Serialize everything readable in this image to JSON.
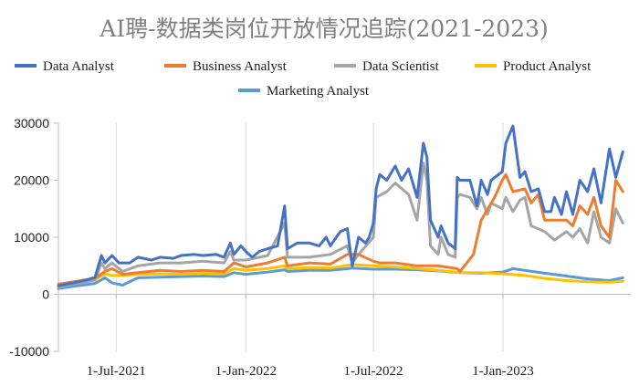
{
  "chart_data": {
    "type": "line",
    "title": "AI聘-数据类岗位开放情况追踪(2021-2023)",
    "xlabel": "",
    "ylabel": "",
    "x_range": [
      "2021-04-10",
      "2023-06-30"
    ],
    "ylim": [
      -10000,
      30000
    ],
    "y_ticks": [
      30000,
      20000,
      10000,
      0,
      -10000
    ],
    "y_tick_labels": [
      "30000",
      "20000",
      "10000",
      "0",
      "-10000"
    ],
    "x_ticks": [
      "2021-07-01",
      "2022-01-01",
      "2022-07-01",
      "2023-01-01"
    ],
    "x_tick_labels": [
      "1-Jul-2021",
      "1-Jan-2022",
      "1-Jul-2022",
      "1-Jan-2023"
    ],
    "grid": "vertical",
    "legend_position": "top",
    "series": [
      {
        "name": "Data Analyst",
        "color": "#4472C4",
        "points": [
          [
            "2021-04-10",
            1500
          ],
          [
            "2021-05-01",
            2000
          ],
          [
            "2021-05-20",
            2500
          ],
          [
            "2021-06-01",
            3000
          ],
          [
            "2021-06-10",
            6800
          ],
          [
            "2021-06-15",
            5500
          ],
          [
            "2021-06-25",
            6800
          ],
          [
            "2021-07-05",
            5500
          ],
          [
            "2021-07-20",
            5500
          ],
          [
            "2021-08-01",
            6500
          ],
          [
            "2021-08-20",
            6000
          ],
          [
            "2021-09-01",
            6500
          ],
          [
            "2021-09-20",
            6300
          ],
          [
            "2021-10-01",
            6800
          ],
          [
            "2021-10-20",
            7000
          ],
          [
            "2021-11-01",
            6800
          ],
          [
            "2021-11-20",
            7000
          ],
          [
            "2021-12-01",
            6500
          ],
          [
            "2021-12-10",
            9000
          ],
          [
            "2021-12-15",
            7000
          ],
          [
            "2021-12-25",
            8500
          ],
          [
            "2022-01-01",
            7500
          ],
          [
            "2022-01-10",
            6500
          ],
          [
            "2022-01-20",
            7500
          ],
          [
            "2022-02-01",
            8000
          ],
          [
            "2022-02-15",
            8500
          ],
          [
            "2022-02-25",
            15500
          ],
          [
            "2022-03-01",
            8000
          ],
          [
            "2022-03-15",
            9000
          ],
          [
            "2022-04-01",
            9000
          ],
          [
            "2022-04-15",
            8500
          ],
          [
            "2022-04-25",
            10000
          ],
          [
            "2022-05-01",
            8500
          ],
          [
            "2022-05-15",
            11000
          ],
          [
            "2022-05-25",
            11500
          ],
          [
            "2022-06-01",
            5000
          ],
          [
            "2022-06-10",
            10000
          ],
          [
            "2022-06-20",
            9000
          ],
          [
            "2022-06-25",
            10000
          ],
          [
            "2022-07-01",
            12500
          ],
          [
            "2022-07-05",
            18500
          ],
          [
            "2022-07-10",
            21000
          ],
          [
            "2022-07-20",
            20000
          ],
          [
            "2022-08-01",
            22500
          ],
          [
            "2022-08-10",
            20000
          ],
          [
            "2022-08-20",
            22000
          ],
          [
            "2022-09-01",
            17000
          ],
          [
            "2022-09-10",
            26500
          ],
          [
            "2022-09-15",
            24000
          ],
          [
            "2022-09-20",
            13000
          ],
          [
            "2022-10-01",
            10000
          ],
          [
            "2022-10-05",
            12000
          ],
          [
            "2022-10-15",
            9000
          ],
          [
            "2022-10-25",
            8000
          ],
          [
            "2022-10-28",
            20500
          ],
          [
            "2022-11-01",
            20000
          ],
          [
            "2022-11-15",
            20000
          ],
          [
            "2022-11-25",
            15500
          ],
          [
            "2022-12-01",
            20000
          ],
          [
            "2022-12-10",
            17500
          ],
          [
            "2022-12-15",
            20000
          ],
          [
            "2022-12-31",
            21500
          ],
          [
            "2023-01-05",
            26500
          ],
          [
            "2023-01-15",
            29500
          ],
          [
            "2023-01-25",
            20500
          ],
          [
            "2023-02-01",
            21500
          ],
          [
            "2023-02-10",
            18000
          ],
          [
            "2023-02-20",
            18500
          ],
          [
            "2023-03-01",
            14500
          ],
          [
            "2023-03-10",
            14500
          ],
          [
            "2023-03-15",
            17000
          ],
          [
            "2023-03-25",
            14000
          ],
          [
            "2023-04-01",
            18000
          ],
          [
            "2023-04-10",
            14000
          ],
          [
            "2023-04-20",
            20000
          ],
          [
            "2023-05-01",
            18000
          ],
          [
            "2023-05-10",
            22000
          ],
          [
            "2023-05-20",
            16000
          ],
          [
            "2023-06-01",
            25500
          ],
          [
            "2023-06-10",
            20500
          ],
          [
            "2023-06-20",
            25000
          ]
        ]
      },
      {
        "name": "Business Analyst",
        "color": "#ED7D31",
        "points": [
          [
            "2021-04-10",
            1800
          ],
          [
            "2021-05-01",
            2200
          ],
          [
            "2021-05-20",
            2600
          ],
          [
            "2021-06-01",
            2800
          ],
          [
            "2021-06-15",
            4000
          ],
          [
            "2021-06-25",
            4500
          ],
          [
            "2021-07-10",
            3500
          ],
          [
            "2021-08-01",
            3800
          ],
          [
            "2021-09-01",
            4200
          ],
          [
            "2021-10-01",
            4000
          ],
          [
            "2021-11-01",
            4200
          ],
          [
            "2021-12-01",
            4000
          ],
          [
            "2021-12-15",
            5500
          ],
          [
            "2022-01-01",
            4800
          ],
          [
            "2022-02-01",
            5500
          ],
          [
            "2022-02-25",
            6500
          ],
          [
            "2022-03-01",
            5000
          ],
          [
            "2022-04-01",
            5500
          ],
          [
            "2022-05-01",
            5300
          ],
          [
            "2022-05-25",
            7000
          ],
          [
            "2022-06-10",
            7000
          ],
          [
            "2022-07-01",
            5800
          ],
          [
            "2022-07-10",
            5500
          ],
          [
            "2022-08-01",
            5500
          ],
          [
            "2022-09-01",
            5000
          ],
          [
            "2022-10-01",
            5000
          ],
          [
            "2022-10-28",
            4500
          ],
          [
            "2022-11-01",
            4000
          ],
          [
            "2022-11-20",
            7000
          ],
          [
            "2022-12-01",
            13000
          ],
          [
            "2022-12-20",
            17000
          ],
          [
            "2022-12-31",
            20000
          ],
          [
            "2023-01-05",
            21000
          ],
          [
            "2023-01-15",
            18000
          ],
          [
            "2023-02-01",
            18500
          ],
          [
            "2023-02-10",
            16000
          ],
          [
            "2023-02-20",
            17500
          ],
          [
            "2023-03-01",
            13000
          ],
          [
            "2023-03-15",
            13000
          ],
          [
            "2023-04-01",
            13000
          ],
          [
            "2023-04-10",
            12000
          ],
          [
            "2023-04-20",
            15500
          ],
          [
            "2023-05-01",
            14000
          ],
          [
            "2023-05-10",
            17000
          ],
          [
            "2023-05-20",
            12000
          ],
          [
            "2023-06-01",
            10000
          ],
          [
            "2023-06-10",
            20000
          ],
          [
            "2023-06-20",
            18000
          ]
        ]
      },
      {
        "name": "Data Scientist",
        "color": "#A5A5A5",
        "points": [
          [
            "2021-04-10",
            1200
          ],
          [
            "2021-05-01",
            1800
          ],
          [
            "2021-05-20",
            2200
          ],
          [
            "2021-06-01",
            2500
          ],
          [
            "2021-06-10",
            5500
          ],
          [
            "2021-06-15",
            4500
          ],
          [
            "2021-06-25",
            5500
          ],
          [
            "2021-07-10",
            4000
          ],
          [
            "2021-08-01",
            5000
          ],
          [
            "2021-09-01",
            5500
          ],
          [
            "2021-10-01",
            5500
          ],
          [
            "2021-11-01",
            5800
          ],
          [
            "2021-12-01",
            5500
          ],
          [
            "2021-12-10",
            7500
          ],
          [
            "2021-12-15",
            6000
          ],
          [
            "2022-01-01",
            6000
          ],
          [
            "2022-02-01",
            6800
          ],
          [
            "2022-02-25",
            12500
          ],
          [
            "2022-03-01",
            6500
          ],
          [
            "2022-04-01",
            6500
          ],
          [
            "2022-05-01",
            7000
          ],
          [
            "2022-05-25",
            8500
          ],
          [
            "2022-06-01",
            5500
          ],
          [
            "2022-06-10",
            7000
          ],
          [
            "2022-07-01",
            10000
          ],
          [
            "2022-07-05",
            17000
          ],
          [
            "2022-07-20",
            18000
          ],
          [
            "2022-08-01",
            19500
          ],
          [
            "2022-08-20",
            17500
          ],
          [
            "2022-09-01",
            13000
          ],
          [
            "2022-09-10",
            23000
          ],
          [
            "2022-09-15",
            20000
          ],
          [
            "2022-09-20",
            8500
          ],
          [
            "2022-10-01",
            7000
          ],
          [
            "2022-10-05",
            10000
          ],
          [
            "2022-10-15",
            7000
          ],
          [
            "2022-10-25",
            6500
          ],
          [
            "2022-10-28",
            17000
          ],
          [
            "2022-11-01",
            17500
          ],
          [
            "2022-11-15",
            17000
          ],
          [
            "2022-11-25",
            15000
          ],
          [
            "2022-12-01",
            17000
          ],
          [
            "2022-12-10",
            14000
          ],
          [
            "2022-12-15",
            16000
          ],
          [
            "2022-12-31",
            15000
          ],
          [
            "2023-01-05",
            17000
          ],
          [
            "2023-01-15",
            14500
          ],
          [
            "2023-01-25",
            16500
          ],
          [
            "2023-02-01",
            17000
          ],
          [
            "2023-02-10",
            12000
          ],
          [
            "2023-03-01",
            11000
          ],
          [
            "2023-03-15",
            9500
          ],
          [
            "2023-04-01",
            11000
          ],
          [
            "2023-04-10",
            10000
          ],
          [
            "2023-04-20",
            11500
          ],
          [
            "2023-05-01",
            9000
          ],
          [
            "2023-05-10",
            14500
          ],
          [
            "2023-05-20",
            10000
          ],
          [
            "2023-06-01",
            9000
          ],
          [
            "2023-06-10",
            15000
          ],
          [
            "2023-06-20",
            12500
          ]
        ]
      },
      {
        "name": "Product Analyst",
        "color": "#FFC000",
        "points": [
          [
            "2021-04-10",
            1500
          ],
          [
            "2021-05-01",
            1900
          ],
          [
            "2021-05-20",
            2300
          ],
          [
            "2021-06-01",
            2600
          ],
          [
            "2021-06-15",
            3600
          ],
          [
            "2021-06-25",
            3300
          ],
          [
            "2021-07-10",
            3300
          ],
          [
            "2021-08-01",
            3500
          ],
          [
            "2021-09-01",
            3600
          ],
          [
            "2021-10-01",
            3500
          ],
          [
            "2021-11-01",
            3700
          ],
          [
            "2021-12-01",
            3600
          ],
          [
            "2021-12-15",
            4500
          ],
          [
            "2022-01-01",
            4200
          ],
          [
            "2022-02-01",
            4500
          ],
          [
            "2022-02-25",
            5000
          ],
          [
            "2022-03-01",
            4500
          ],
          [
            "2022-04-01",
            4700
          ],
          [
            "2022-05-01",
            4600
          ],
          [
            "2022-06-01",
            5200
          ],
          [
            "2022-07-01",
            5000
          ],
          [
            "2022-08-01",
            4800
          ],
          [
            "2022-09-01",
            4500
          ],
          [
            "2022-10-01",
            4200
          ],
          [
            "2022-11-01",
            3800
          ],
          [
            "2022-12-01",
            3800
          ],
          [
            "2023-01-01",
            3600
          ],
          [
            "2023-02-01",
            3300
          ],
          [
            "2023-03-01",
            2800
          ],
          [
            "2023-04-01",
            2400
          ],
          [
            "2023-05-01",
            2200
          ],
          [
            "2023-06-01",
            2100
          ],
          [
            "2023-06-20",
            2300
          ]
        ]
      },
      {
        "name": "Marketing Analyst",
        "color": "#5B9BD5",
        "points": [
          [
            "2021-04-10",
            1000
          ],
          [
            "2021-05-01",
            1400
          ],
          [
            "2021-05-20",
            1700
          ],
          [
            "2021-06-01",
            1900
          ],
          [
            "2021-06-15",
            2900
          ],
          [
            "2021-06-25",
            2000
          ],
          [
            "2021-07-10",
            1600
          ],
          [
            "2021-08-01",
            2900
          ],
          [
            "2021-09-01",
            3000
          ],
          [
            "2021-10-01",
            3100
          ],
          [
            "2021-11-01",
            3200
          ],
          [
            "2021-12-01",
            3100
          ],
          [
            "2021-12-15",
            3800
          ],
          [
            "2022-01-01",
            3500
          ],
          [
            "2022-02-01",
            3900
          ],
          [
            "2022-02-25",
            4300
          ],
          [
            "2022-03-01",
            4000
          ],
          [
            "2022-04-01",
            4200
          ],
          [
            "2022-05-01",
            4200
          ],
          [
            "2022-06-01",
            4600
          ],
          [
            "2022-07-01",
            4400
          ],
          [
            "2022-08-01",
            4400
          ],
          [
            "2022-09-01",
            4300
          ],
          [
            "2022-10-01",
            4100
          ],
          [
            "2022-11-01",
            3800
          ],
          [
            "2022-12-01",
            3700
          ],
          [
            "2023-01-01",
            3900
          ],
          [
            "2023-01-15",
            4500
          ],
          [
            "2023-02-01",
            4200
          ],
          [
            "2023-03-01",
            3700
          ],
          [
            "2023-04-01",
            3200
          ],
          [
            "2023-05-01",
            2700
          ],
          [
            "2023-06-01",
            2400
          ],
          [
            "2023-06-20",
            2900
          ]
        ]
      }
    ]
  }
}
